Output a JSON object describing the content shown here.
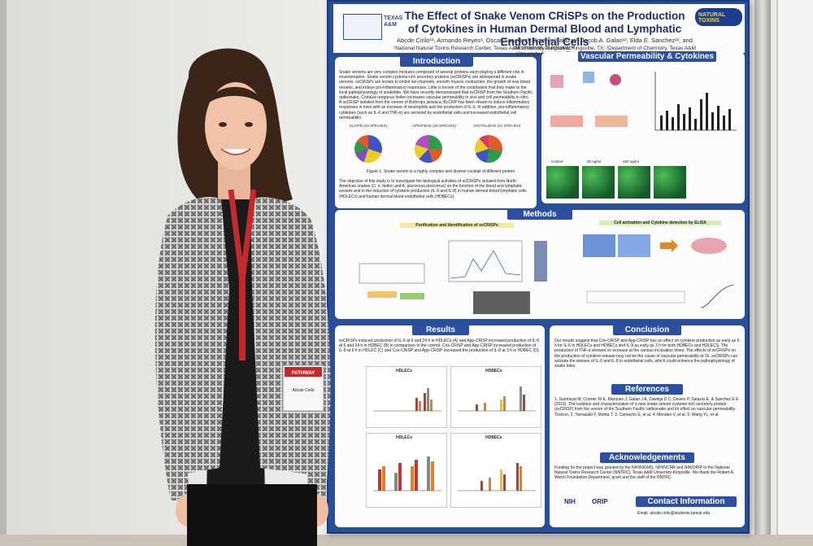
{
  "poster": {
    "title": "The Effect of Snake Venom CRiSPs on the Production of Cytokines in Human Dermal Blood and Lymphatic Endothelial Cells",
    "authors": "Abcde Cirilo¹², Armando Reyes¹, Oscar Sanchez¹, Emelyn Salazar¹, Jacob A. Galan¹², Elda E. Sanchez¹², and Montamas Suntravat¹²",
    "affiliation": "¹National Natural Toxins Research Center, Texas A&M University-Kingsville, Kingsville, TX; ²Department of Chemistry, Texas A&M University Kingsville, TX",
    "logo_right": "NATURAL TOXINS",
    "logo_left": "TEXAS A&M",
    "sections": {
      "introduction": "Introduction",
      "vascular": "Vascular Permeability & Cytokines",
      "methods": "Methods",
      "results": "Results",
      "conclusion": "Conclusion",
      "references": "References",
      "acknowledgements": "Acknowledgements",
      "contact": "Contact Information"
    },
    "methods_sub": {
      "purification": "Purification and Identification of svCRiSPs",
      "activation": "Cell activation and Cytokine detection by ELISA"
    },
    "chart_titles": [
      "HDLECs",
      "HDBECs",
      "HDLECs",
      "HDBECs"
    ],
    "micro_labels": [
      "Control",
      "50 ng/ml",
      "200 ng/ml"
    ],
    "ack_logos": [
      "NIH",
      "ORIP"
    ],
    "pie_titles": [
      "ELAPID (23 SPECIES)",
      "VIPERIDAE (26 SPECIES)",
      "CROTALIDAE (21 SPECIES)"
    ],
    "figure1_caption": "Figure 1. Snake venom is a highly complex and diverse cocktail of different protein",
    "intro_text": "Snake venoms are very complex mixtures composed of several proteins each playing a different role in envenomation. Snake venom cysteine-rich secretory proteins (svCRiSPs) are widespread in snake venoms. svCRiSPs are known to inhibit ion-channels, smooth muscle contraction, the growth of new blood vessels, and induce pro-inflammatory responses. Little is known of the contribution that they make to the local pathophysiology of snakebite. We have recently demonstrated that svCRiSP from the Southern Pacific rattlesnake, Crotalus oreganus helleri increases vascular permeability in vivo and cell permeability in vitro. A svCRiSP isolated from the venom of Bothrops jararaca, Bj-CRP has been shown to induce inflammatory responses in mice with an increase of neutrophils and the production of IL-6. In addition, pro-inflammatory cytokines (such as IL-6 and TNF-α) are secreted by endothelial cells and increased endothelial cell permeability.",
    "objective_text": "The objective of this study is to investigate the biological activities of svCRiSPs isolated from North American snakes (C. o. helleri and A. piscivorus piscivorus) on the function of the blood and lymphatic vessels and in the induction of cytokine production (IL-6 and IL-8) in human dermal blood lymphatic cells (HDLECs) and human dermal blood endothelial cells (HDBECs).",
    "results_text": "svCRiSPs induced production of IL-6 at 6 and 24 h in HDLECs (A) and App-CRiSP increased production of IL-6 at 6 and 24 h in HDBEC (B) in comparison to the control. Cos-CRiSP and App-CRiSP increased production of IL-8 at 6 h in HDLEC (C) and Cos-CRiSP and App-CRiSP increased the production of IL-8 at 3 h in HDBEC (D).",
    "conclusion_text": "Our results suggest that Cos-CRiSP and App-CRiSP has an effect on cytokine production as early as 6 h for IL-6 in HDLECs and HDBECs and IL-8 as early as 3 h for both HDBECs and HDLECS. The production of TNF-α showed no increase at the various incubation times. The effects of svCRiSPs on the production of cytokine release may not be the cause of vascular permeability at 1h. svCRiSPs can activate the release of IL-6 and IL-8 in endothelial cells, which could enhance the pathophysiology of snake bites.",
    "references_text": "1. Suntravat M, Cromer W E, Marquez J, Galan J A, Zawieja D C, Davies P, Salazar E, & Sanchez E E (2019). The isolation and characterization of a new snake venom cysteine-rich secretory protein (svCRiSP) from the venom of the Southern Pacific rattlesnake and its effect on vascular permeability. Toxicon. 2. Yamazaki Y, Morita T. 3. Camacho E, et al. 4. Mendes V, et al. 5. Wang YL, et al.",
    "ack_text": "Funding for the project was granted by the NIH/NIGMS, NIH/NCRR and NIH/ORIP to the National Natural Toxins Research Center (NNTRC), Texas A&M University-Kingsville. We thank the Robert A. Welch Foundation Department, grant and the staff of the NNTRC.",
    "contact_text": "Email: abcde.cirilo@students.tamuk.edu"
  },
  "badge": {
    "event": "PATHWAY",
    "name": "Abcde Cirilo"
  },
  "colors": {
    "poster_blue": "#2a4f99",
    "lanyard_red": "#c22a2f",
    "jacket_gray": "#8a8a8a"
  }
}
